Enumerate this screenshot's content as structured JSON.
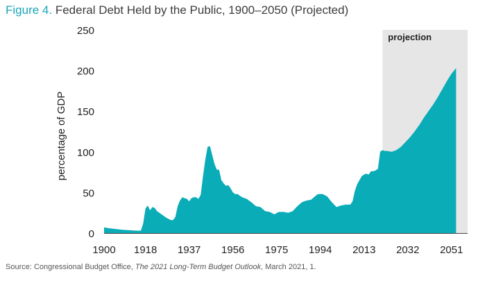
{
  "title_prefix": "Figure 4.",
  "title_text": "Federal Debt Held by the Public, 1900–2050 (Projected)",
  "source": {
    "prefix": "Source: Congressional Budget Office, ",
    "report": "The 2021 Long-Term Budget Outlook",
    "suffix": ", March 2021, 1."
  },
  "colors": {
    "area": "#0aacb8",
    "projection_band": "#e6e6e6",
    "title_accent": "#1aa6b7",
    "text": "#222222"
  },
  "chart_data": {
    "type": "area",
    "title": "Federal Debt Held by the Public, 1900–2050 (Projected)",
    "xlabel": "",
    "ylabel": "percentage of GDP",
    "xlim": [
      1900,
      2058
    ],
    "ylim": [
      0,
      250
    ],
    "x_ticks": [
      "1900",
      "1918",
      "1937",
      "1956",
      "1975",
      "1994",
      "2013",
      "2032",
      "2051"
    ],
    "y_ticks": [
      "0",
      "50",
      "100",
      "150",
      "200",
      "250"
    ],
    "grid": false,
    "projection": {
      "label": "projection",
      "start": 2021,
      "end": 2058
    },
    "series": [
      {
        "values": [
          [
            1900,
            7
          ],
          [
            1902,
            6
          ],
          [
            1905,
            5
          ],
          [
            1908,
            4
          ],
          [
            1911,
            3.5
          ],
          [
            1914,
            3
          ],
          [
            1916,
            3
          ],
          [
            1917,
            12
          ],
          [
            1918,
            30
          ],
          [
            1919,
            34
          ],
          [
            1920,
            28
          ],
          [
            1921,
            32
          ],
          [
            1922,
            31
          ],
          [
            1923,
            27
          ],
          [
            1925,
            23
          ],
          [
            1927,
            19
          ],
          [
            1929,
            16
          ],
          [
            1930,
            16
          ],
          [
            1931,
            20
          ],
          [
            1932,
            33
          ],
          [
            1933,
            40
          ],
          [
            1934,
            44
          ],
          [
            1935,
            43
          ],
          [
            1936,
            42
          ],
          [
            1937,
            39
          ],
          [
            1938,
            43
          ],
          [
            1939,
            44
          ],
          [
            1940,
            44
          ],
          [
            1941,
            42
          ],
          [
            1942,
            47
          ],
          [
            1943,
            70
          ],
          [
            1944,
            90
          ],
          [
            1945,
            106
          ],
          [
            1946,
            107
          ],
          [
            1947,
            96
          ],
          [
            1948,
            85
          ],
          [
            1949,
            78
          ],
          [
            1950,
            78
          ],
          [
            1951,
            65
          ],
          [
            1952,
            61
          ],
          [
            1953,
            58
          ],
          [
            1954,
            59
          ],
          [
            1955,
            55
          ],
          [
            1956,
            50
          ],
          [
            1957,
            48
          ],
          [
            1958,
            48
          ],
          [
            1959,
            46
          ],
          [
            1960,
            44
          ],
          [
            1962,
            42
          ],
          [
            1964,
            38
          ],
          [
            1966,
            33
          ],
          [
            1968,
            32
          ],
          [
            1970,
            27
          ],
          [
            1972,
            26
          ],
          [
            1974,
            23
          ],
          [
            1976,
            26
          ],
          [
            1978,
            26
          ],
          [
            1980,
            25
          ],
          [
            1982,
            27
          ],
          [
            1984,
            33
          ],
          [
            1986,
            38
          ],
          [
            1988,
            40
          ],
          [
            1990,
            41
          ],
          [
            1992,
            46
          ],
          [
            1993,
            48
          ],
          [
            1995,
            48
          ],
          [
            1997,
            45
          ],
          [
            1999,
            38
          ],
          [
            2001,
            32
          ],
          [
            2003,
            34
          ],
          [
            2005,
            35
          ],
          [
            2007,
            35
          ],
          [
            2008,
            39
          ],
          [
            2009,
            52
          ],
          [
            2010,
            60
          ],
          [
            2011,
            65
          ],
          [
            2012,
            70
          ],
          [
            2013,
            72
          ],
          [
            2014,
            73
          ],
          [
            2015,
            72
          ],
          [
            2016,
            76
          ],
          [
            2017,
            76
          ],
          [
            2018,
            77
          ],
          [
            2019,
            79
          ],
          [
            2020,
            100
          ],
          [
            2021,
            102
          ],
          [
            2022,
            101
          ],
          [
            2023,
            101
          ],
          [
            2025,
            100
          ],
          [
            2027,
            102
          ],
          [
            2029,
            106
          ],
          [
            2031,
            112
          ],
          [
            2033,
            118
          ],
          [
            2035,
            125
          ],
          [
            2037,
            133
          ],
          [
            2039,
            142
          ],
          [
            2041,
            150
          ],
          [
            2043,
            158
          ],
          [
            2045,
            167
          ],
          [
            2047,
            177
          ],
          [
            2049,
            187
          ],
          [
            2051,
            196
          ],
          [
            2053,
            203
          ]
        ]
      }
    ]
  }
}
